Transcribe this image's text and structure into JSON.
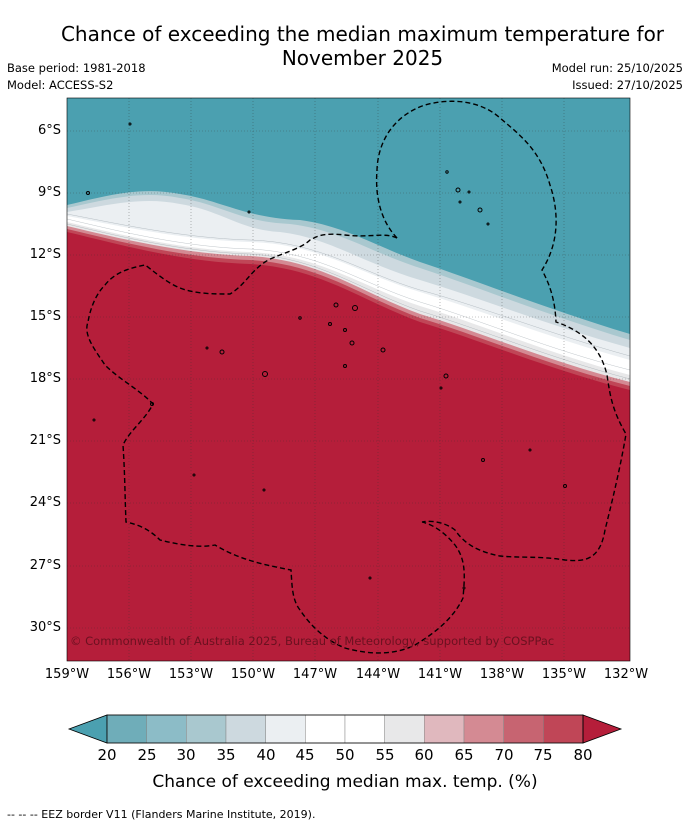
{
  "title_line1": "Chance of exceeding the median maximum temperature for",
  "title_line2": "November 2025",
  "meta": {
    "base_period": "Base period: 1981-2018",
    "model": "Model: ACCESS-S2",
    "model_run": "Model run: 25/10/2025",
    "issued": "Issued: 27/10/2025"
  },
  "copyright": "© Commonwealth of Australia 2025, Bureau of Meteorology, supported by COSPPac",
  "lat_labels": [
    "6°S",
    "9°S",
    "12°S",
    "15°S",
    "18°S",
    "21°S",
    "24°S",
    "27°S",
    "30°S"
  ],
  "lon_labels": [
    "159°W",
    "156°W",
    "153°W",
    "150°W",
    "147°W",
    "144°W",
    "141°W",
    "138°W",
    "135°W",
    "132°W"
  ],
  "colorbar": {
    "title": "Chance of exceeding median max. temp. (%)",
    "ticks": [
      "20",
      "25",
      "30",
      "35",
      "40",
      "45",
      "50",
      "55",
      "60",
      "65",
      "70",
      "75",
      "80"
    ],
    "colors": [
      "#6fadb9",
      "#8cbcc7",
      "#a9c8cf",
      "#cdd9df",
      "#ebeff2",
      "#ffffff",
      "#ffffff",
      "#e8e8e9",
      "#e0b8be",
      "#d48a93",
      "#c76471",
      "#c04657"
    ],
    "under_color": "#4ba0b0",
    "over_color": "#b51e3a"
  },
  "legend_footer": "-- -- -- EEZ border V11 (Flanders Marine Institute, 2019)."
}
